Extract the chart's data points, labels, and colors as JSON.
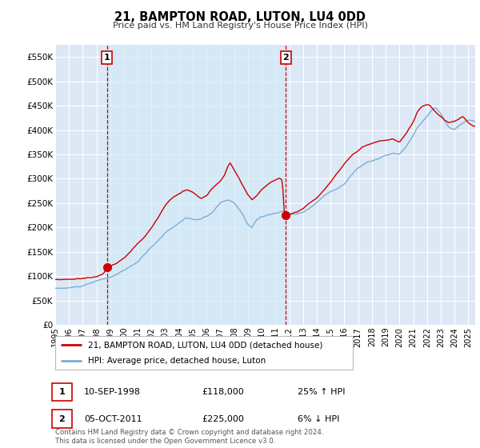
{
  "title": "21, BAMPTON ROAD, LUTON, LU4 0DD",
  "subtitle": "Price paid vs. HM Land Registry's House Price Index (HPI)",
  "background_color": "#ffffff",
  "plot_bg_color": "#dce8f5",
  "grid_color": "#ffffff",
  "shaded_region_color": "#c8dff0",
  "red_line_color": "#cc0000",
  "blue_line_color": "#7aafd4",
  "ylim": [
    0,
    575000
  ],
  "yticks": [
    0,
    50000,
    100000,
    150000,
    200000,
    250000,
    300000,
    350000,
    400000,
    450000,
    500000,
    550000
  ],
  "ytick_labels": [
    "£0",
    "£50K",
    "£100K",
    "£150K",
    "£200K",
    "£250K",
    "£300K",
    "£350K",
    "£400K",
    "£450K",
    "£500K",
    "£550K"
  ],
  "xmin": 1995,
  "xmax": 2025.5,
  "marker1_x": 1998.75,
  "marker1_y": 118000,
  "marker1_label": "1",
  "marker1_date": "10-SEP-1998",
  "marker1_price": "£118,000",
  "marker1_hpi": "25% ↑ HPI",
  "marker2_x": 2011.75,
  "marker2_y": 225000,
  "marker2_label": "2",
  "marker2_date": "05-OCT-2011",
  "marker2_price": "£225,000",
  "marker2_hpi": "6% ↓ HPI",
  "legend_line1": "21, BAMPTON ROAD, LUTON, LU4 0DD (detached house)",
  "legend_line2": "HPI: Average price, detached house, Luton",
  "footnote": "Contains HM Land Registry data © Crown copyright and database right 2024.\nThis data is licensed under the Open Government Licence v3.0."
}
